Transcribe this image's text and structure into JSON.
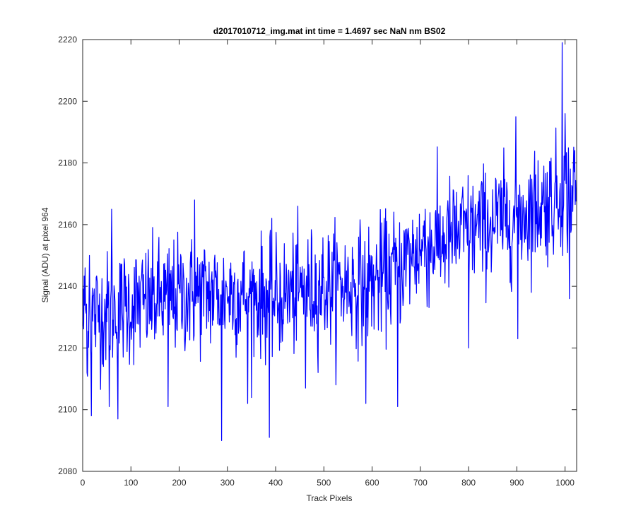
{
  "chart_data": {
    "type": "line",
    "title": "d2017010712_img.mat int time = 1.4697 sec  NaN nm BS02",
    "xlabel": "Track Pixels",
    "ylabel": "Signal (ADU) at pixel 964",
    "xlim": [
      0,
      1024
    ],
    "ylim": [
      2080,
      2220
    ],
    "xticks": [
      0,
      100,
      200,
      300,
      400,
      500,
      600,
      700,
      800,
      900,
      1000
    ],
    "yticks": [
      2080,
      2100,
      2120,
      2140,
      2160,
      2180,
      2200,
      2220
    ],
    "grid": false,
    "series": [
      {
        "color": "#0000ff",
        "trend": [
          [
            0,
            2130
          ],
          [
            100,
            2134
          ],
          [
            200,
            2137
          ],
          [
            300,
            2138
          ],
          [
            400,
            2136
          ],
          [
            500,
            2140
          ],
          [
            600,
            2141
          ],
          [
            650,
            2146
          ],
          [
            700,
            2152
          ],
          [
            800,
            2158
          ],
          [
            900,
            2163
          ],
          [
            1000,
            2170
          ],
          [
            1024,
            2172
          ]
        ],
        "noise_std": 9.5,
        "highlights": [
          [
            5,
            2146
          ],
          [
            9,
            2112
          ],
          [
            14,
            2150
          ],
          [
            18,
            2098
          ],
          [
            55,
            2101
          ],
          [
            60,
            2165
          ],
          [
            73,
            2097
          ],
          [
            177,
            2101
          ],
          [
            232,
            2168
          ],
          [
            288,
            2090
          ],
          [
            342,
            2102
          ],
          [
            387,
            2091
          ],
          [
            388,
            2156
          ],
          [
            446,
            2166
          ],
          [
            462,
            2107
          ],
          [
            587,
            2102
          ],
          [
            653,
            2101
          ],
          [
            710,
            2165
          ],
          [
            800,
            2120
          ],
          [
            898,
            2195
          ],
          [
            902,
            2123
          ],
          [
            994,
            2219
          ],
          [
            1000,
            2196
          ],
          [
            1009,
            2136
          ]
        ],
        "n_points": 1024
      }
    ]
  }
}
